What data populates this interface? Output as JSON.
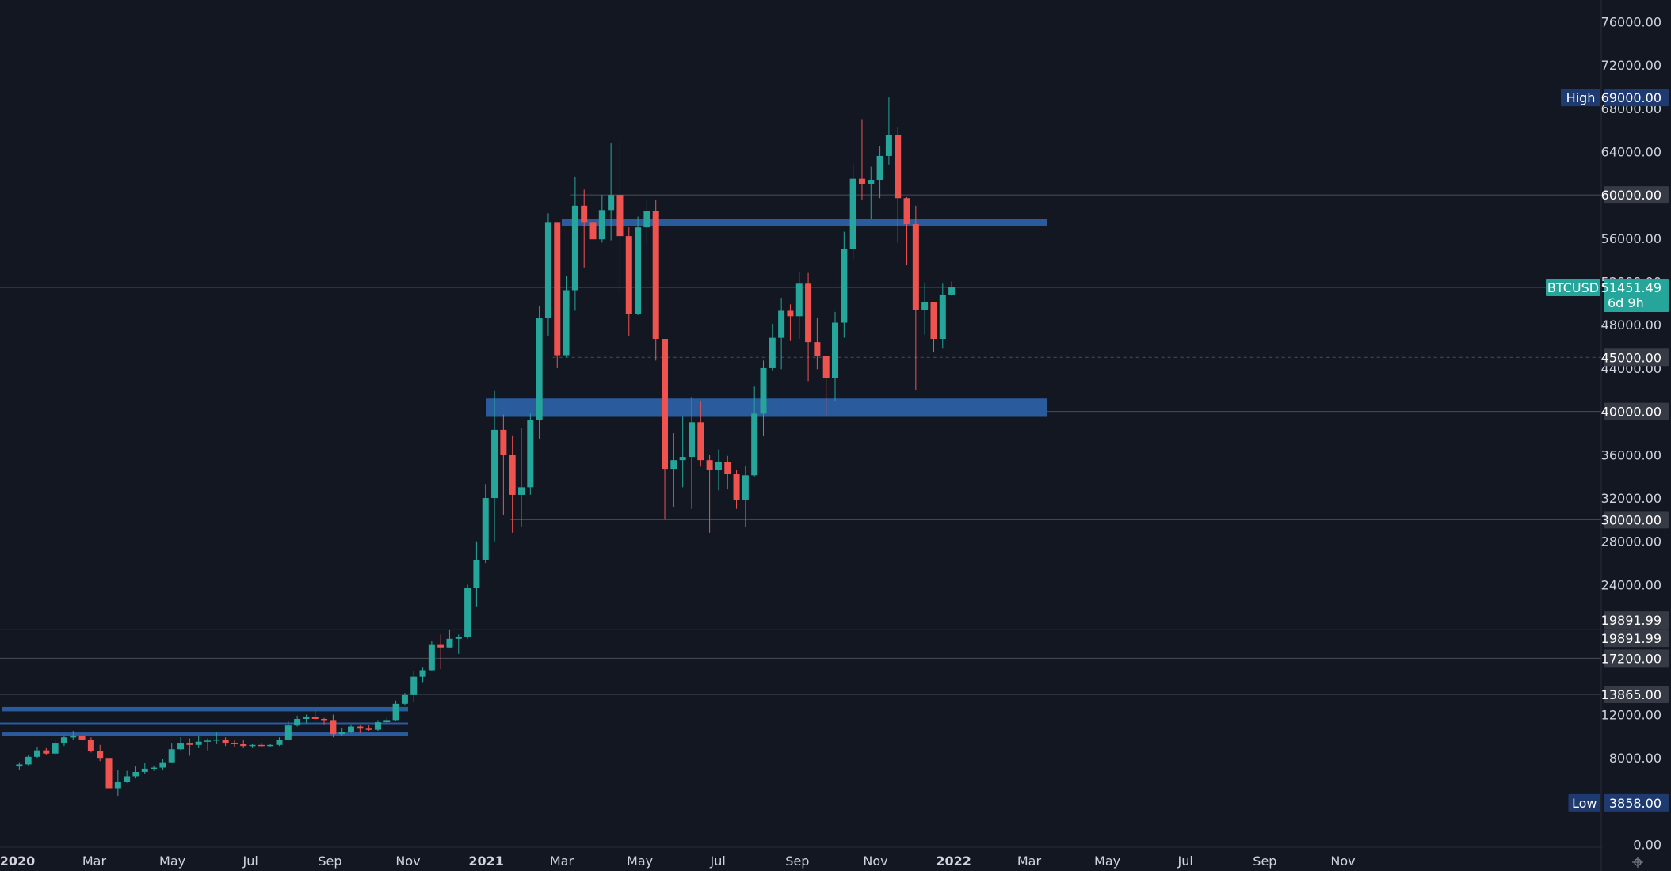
{
  "chart_data": {
    "type": "candlestick",
    "symbol": "BTCUSD",
    "interval": "1W",
    "ylim": [
      0,
      78000
    ],
    "colors": {
      "background": "#131722",
      "up": "#26a69a",
      "down": "#ef5350",
      "zone": "#2a5b9c",
      "axis_text": "#d1d4dc",
      "level_line": "#4a4e59",
      "badge_grey": "#363a45",
      "badge_navy": "#1e3a6e",
      "badge_green": "#26a69a"
    },
    "y_ticks": [
      {
        "value": 76000,
        "label": "76000.00"
      },
      {
        "value": 72000,
        "label": "72000.00"
      },
      {
        "value": 68000,
        "label": "68000.00"
      },
      {
        "value": 64000,
        "label": "64000.00"
      },
      {
        "value": 56000,
        "label": "56000.00"
      },
      {
        "value": 52000,
        "label": "52000.00"
      },
      {
        "value": 48000,
        "label": "48000.00"
      },
      {
        "value": 44000,
        "label": "44000.00"
      },
      {
        "value": 36000,
        "label": "36000.00"
      },
      {
        "value": 32000,
        "label": "32000.00"
      },
      {
        "value": 28000,
        "label": "28000.00"
      },
      {
        "value": 24000,
        "label": "24000.00"
      },
      {
        "value": 12000,
        "label": "12000.00"
      },
      {
        "value": 8000,
        "label": "8000.00"
      },
      {
        "value": 0,
        "label": "0.00"
      }
    ],
    "x_ticks": [
      {
        "date": "2020-01-01",
        "label": "2020",
        "year": true
      },
      {
        "date": "2020-03-01",
        "label": "Mar"
      },
      {
        "date": "2020-05-01",
        "label": "May"
      },
      {
        "date": "2020-07-01",
        "label": "Jul"
      },
      {
        "date": "2020-09-01",
        "label": "Sep"
      },
      {
        "date": "2020-11-01",
        "label": "Nov"
      },
      {
        "date": "2021-01-01",
        "label": "2021",
        "year": true
      },
      {
        "date": "2021-03-01",
        "label": "Mar"
      },
      {
        "date": "2021-05-01",
        "label": "May"
      },
      {
        "date": "2021-07-01",
        "label": "Jul"
      },
      {
        "date": "2021-09-01",
        "label": "Sep"
      },
      {
        "date": "2021-11-01",
        "label": "Nov"
      },
      {
        "date": "2022-01-01",
        "label": "2022",
        "year": true
      },
      {
        "date": "2022-03-01",
        "label": "Mar"
      },
      {
        "date": "2022-05-01",
        "label": "May"
      },
      {
        "date": "2022-07-01",
        "label": "Jul"
      },
      {
        "date": "2022-09-01",
        "label": "Sep"
      },
      {
        "date": "2022-11-01",
        "label": "Nov"
      }
    ],
    "candles": [
      {
        "date": "2019-12-30",
        "open": 7200,
        "high": 7600,
        "low": 6900,
        "close": 7400
      },
      {
        "date": "2020-01-06",
        "open": 7400,
        "high": 8300,
        "low": 7300,
        "close": 8100
      },
      {
        "date": "2020-01-13",
        "open": 8100,
        "high": 9000,
        "low": 8000,
        "close": 8700
      },
      {
        "date": "2020-01-20",
        "open": 8700,
        "high": 8900,
        "low": 8300,
        "close": 8400
      },
      {
        "date": "2020-01-27",
        "open": 8400,
        "high": 9600,
        "low": 8300,
        "close": 9400
      },
      {
        "date": "2020-02-03",
        "open": 9400,
        "high": 10100,
        "low": 9100,
        "close": 9900
      },
      {
        "date": "2020-02-10",
        "open": 9900,
        "high": 10500,
        "low": 9700,
        "close": 10000
      },
      {
        "date": "2020-02-17",
        "open": 10000,
        "high": 10300,
        "low": 9500,
        "close": 9700
      },
      {
        "date": "2020-02-24",
        "open": 9700,
        "high": 9900,
        "low": 8500,
        "close": 8600
      },
      {
        "date": "2020-03-02",
        "open": 8600,
        "high": 9200,
        "low": 7700,
        "close": 8000
      },
      {
        "date": "2020-03-09",
        "open": 8000,
        "high": 8200,
        "low": 3858,
        "close": 5200
      },
      {
        "date": "2020-03-16",
        "open": 5200,
        "high": 6900,
        "low": 4500,
        "close": 5800
      },
      {
        "date": "2020-03-23",
        "open": 5800,
        "high": 6800,
        "low": 5700,
        "close": 6300
      },
      {
        "date": "2020-03-30",
        "open": 6300,
        "high": 7200,
        "low": 6100,
        "close": 6700
      },
      {
        "date": "2020-04-06",
        "open": 6700,
        "high": 7500,
        "low": 6500,
        "close": 7000
      },
      {
        "date": "2020-04-13",
        "open": 7000,
        "high": 7300,
        "low": 6800,
        "close": 7100
      },
      {
        "date": "2020-04-20",
        "open": 7100,
        "high": 7900,
        "low": 6900,
        "close": 7600
      },
      {
        "date": "2020-04-27",
        "open": 7600,
        "high": 9400,
        "low": 7500,
        "close": 8800
      },
      {
        "date": "2020-05-04",
        "open": 8800,
        "high": 9900,
        "low": 8700,
        "close": 9400
      },
      {
        "date": "2020-05-11",
        "open": 9400,
        "high": 9800,
        "low": 8200,
        "close": 9200
      },
      {
        "date": "2020-05-18",
        "open": 9200,
        "high": 10000,
        "low": 8900,
        "close": 9500
      },
      {
        "date": "2020-05-25",
        "open": 9500,
        "high": 9800,
        "low": 8700,
        "close": 9600
      },
      {
        "date": "2020-06-01",
        "open": 9600,
        "high": 10400,
        "low": 9300,
        "close": 9700
      },
      {
        "date": "2020-06-08",
        "open": 9700,
        "high": 9900,
        "low": 9100,
        "close": 9400
      },
      {
        "date": "2020-06-15",
        "open": 9400,
        "high": 9600,
        "low": 9000,
        "close": 9300
      },
      {
        "date": "2020-06-22",
        "open": 9300,
        "high": 9700,
        "low": 8900,
        "close": 9100
      },
      {
        "date": "2020-06-29",
        "open": 9100,
        "high": 9300,
        "low": 8900,
        "close": 9200
      },
      {
        "date": "2020-07-06",
        "open": 9200,
        "high": 9400,
        "low": 9000,
        "close": 9100
      },
      {
        "date": "2020-07-13",
        "open": 9100,
        "high": 9300,
        "low": 9000,
        "close": 9200
      },
      {
        "date": "2020-07-20",
        "open": 9200,
        "high": 9900,
        "low": 9100,
        "close": 9700
      },
      {
        "date": "2020-07-27",
        "open": 9700,
        "high": 11400,
        "low": 9600,
        "close": 11000
      },
      {
        "date": "2020-08-03",
        "open": 11000,
        "high": 11900,
        "low": 10900,
        "close": 11600
      },
      {
        "date": "2020-08-10",
        "open": 11600,
        "high": 12000,
        "low": 11200,
        "close": 11800
      },
      {
        "date": "2020-08-17",
        "open": 11800,
        "high": 12400,
        "low": 11500,
        "close": 11600
      },
      {
        "date": "2020-08-24",
        "open": 11600,
        "high": 11700,
        "low": 11100,
        "close": 11500
      },
      {
        "date": "2020-08-31",
        "open": 11500,
        "high": 12000,
        "low": 9900,
        "close": 10200
      },
      {
        "date": "2020-09-07",
        "open": 10200,
        "high": 10800,
        "low": 10000,
        "close": 10400
      },
      {
        "date": "2020-09-14",
        "open": 10400,
        "high": 11100,
        "low": 10300,
        "close": 10900
      },
      {
        "date": "2020-09-21",
        "open": 10900,
        "high": 11000,
        "low": 10300,
        "close": 10700
      },
      {
        "date": "2020-09-28",
        "open": 10700,
        "high": 11000,
        "low": 10500,
        "close": 10600
      },
      {
        "date": "2020-10-05",
        "open": 10600,
        "high": 11500,
        "low": 10500,
        "close": 11300
      },
      {
        "date": "2020-10-12",
        "open": 11300,
        "high": 11700,
        "low": 11200,
        "close": 11500
      },
      {
        "date": "2020-10-19",
        "open": 11500,
        "high": 13300,
        "low": 11400,
        "close": 13000
      },
      {
        "date": "2020-10-26",
        "open": 13000,
        "high": 14000,
        "low": 12900,
        "close": 13800
      },
      {
        "date": "2020-11-02",
        "open": 13800,
        "high": 16000,
        "low": 13200,
        "close": 15500
      },
      {
        "date": "2020-11-09",
        "open": 15500,
        "high": 16400,
        "low": 15000,
        "close": 16100
      },
      {
        "date": "2020-11-16",
        "open": 16100,
        "high": 18800,
        "low": 16000,
        "close": 18500
      },
      {
        "date": "2020-11-23",
        "open": 18500,
        "high": 19400,
        "low": 16200,
        "close": 18200
      },
      {
        "date": "2020-11-30",
        "open": 18200,
        "high": 19800,
        "low": 18100,
        "close": 19000
      },
      {
        "date": "2020-12-07",
        "open": 19000,
        "high": 19400,
        "low": 17600,
        "close": 19200
      },
      {
        "date": "2020-12-14",
        "open": 19200,
        "high": 24000,
        "low": 19000,
        "close": 23700
      },
      {
        "date": "2020-12-21",
        "open": 23700,
        "high": 28000,
        "low": 22000,
        "close": 26300
      },
      {
        "date": "2020-12-28",
        "open": 26300,
        "high": 33300,
        "low": 26000,
        "close": 32000
      },
      {
        "date": "2021-01-04",
        "open": 32000,
        "high": 41900,
        "low": 28000,
        "close": 38300
      },
      {
        "date": "2021-01-11",
        "open": 38300,
        "high": 39700,
        "low": 30400,
        "close": 36000
      },
      {
        "date": "2021-01-18",
        "open": 36000,
        "high": 37800,
        "low": 28800,
        "close": 32300
      },
      {
        "date": "2021-01-25",
        "open": 32300,
        "high": 38500,
        "low": 29300,
        "close": 33000
      },
      {
        "date": "2021-02-01",
        "open": 33000,
        "high": 39800,
        "low": 32300,
        "close": 39200
      },
      {
        "date": "2021-02-08",
        "open": 39200,
        "high": 49700,
        "low": 37500,
        "close": 48600
      },
      {
        "date": "2021-02-15",
        "open": 48600,
        "high": 58300,
        "low": 47000,
        "close": 57500
      },
      {
        "date": "2021-02-22",
        "open": 57500,
        "high": 57500,
        "low": 44000,
        "close": 45200
      },
      {
        "date": "2021-03-01",
        "open": 45200,
        "high": 52500,
        "low": 45000,
        "close": 51200
      },
      {
        "date": "2021-03-08",
        "open": 51200,
        "high": 61700,
        "low": 49300,
        "close": 59000
      },
      {
        "date": "2021-03-15",
        "open": 59000,
        "high": 60500,
        "low": 53300,
        "close": 57500
      },
      {
        "date": "2021-03-22",
        "open": 57500,
        "high": 58300,
        "low": 50400,
        "close": 55900
      },
      {
        "date": "2021-03-29",
        "open": 55900,
        "high": 60000,
        "low": 55600,
        "close": 58600
      },
      {
        "date": "2021-04-05",
        "open": 58600,
        "high": 64800,
        "low": 55800,
        "close": 60000
      },
      {
        "date": "2021-04-12",
        "open": 60000,
        "high": 65000,
        "low": 50900,
        "close": 56200
      },
      {
        "date": "2021-04-19",
        "open": 56200,
        "high": 57000,
        "low": 47000,
        "close": 49000
      },
      {
        "date": "2021-04-26",
        "open": 49000,
        "high": 58000,
        "low": 48900,
        "close": 57000
      },
      {
        "date": "2021-05-03",
        "open": 57000,
        "high": 59500,
        "low": 55400,
        "close": 58500
      },
      {
        "date": "2021-05-10",
        "open": 58500,
        "high": 59500,
        "low": 44700,
        "close": 46700
      },
      {
        "date": "2021-05-17",
        "open": 46700,
        "high": 46700,
        "low": 30000,
        "close": 34700
      },
      {
        "date": "2021-05-24",
        "open": 34700,
        "high": 38000,
        "low": 31200,
        "close": 35500
      },
      {
        "date": "2021-05-31",
        "open": 35500,
        "high": 39500,
        "low": 33000,
        "close": 35800
      },
      {
        "date": "2021-06-07",
        "open": 35800,
        "high": 41300,
        "low": 31000,
        "close": 39000
      },
      {
        "date": "2021-06-14",
        "open": 39000,
        "high": 41000,
        "low": 34900,
        "close": 35500
      },
      {
        "date": "2021-06-21",
        "open": 35500,
        "high": 36000,
        "low": 28800,
        "close": 34600
      },
      {
        "date": "2021-06-28",
        "open": 34600,
        "high": 36500,
        "low": 32700,
        "close": 35300
      },
      {
        "date": "2021-07-05",
        "open": 35300,
        "high": 35900,
        "low": 32800,
        "close": 34200
      },
      {
        "date": "2021-07-12",
        "open": 34200,
        "high": 34600,
        "low": 31000,
        "close": 31800
      },
      {
        "date": "2021-07-19",
        "open": 31800,
        "high": 35000,
        "low": 29300,
        "close": 34100
      },
      {
        "date": "2021-07-26",
        "open": 34100,
        "high": 42300,
        "low": 34000,
        "close": 39800
      },
      {
        "date": "2021-08-02",
        "open": 39800,
        "high": 44700,
        "low": 37700,
        "close": 44000
      },
      {
        "date": "2021-08-09",
        "open": 44000,
        "high": 48100,
        "low": 43800,
        "close": 46800
      },
      {
        "date": "2021-08-16",
        "open": 46800,
        "high": 50500,
        "low": 43900,
        "close": 49300
      },
      {
        "date": "2021-08-23",
        "open": 49300,
        "high": 49900,
        "low": 46500,
        "close": 48800
      },
      {
        "date": "2021-08-30",
        "open": 48800,
        "high": 52900,
        "low": 46700,
        "close": 51800
      },
      {
        "date": "2021-09-06",
        "open": 51800,
        "high": 52800,
        "low": 42800,
        "close": 46400
      },
      {
        "date": "2021-09-13",
        "open": 46400,
        "high": 48600,
        "low": 43900,
        "close": 45100
      },
      {
        "date": "2021-09-20",
        "open": 45100,
        "high": 45100,
        "low": 39600,
        "close": 43100
      },
      {
        "date": "2021-09-27",
        "open": 43100,
        "high": 49200,
        "low": 41000,
        "close": 48200
      },
      {
        "date": "2021-10-04",
        "open": 48200,
        "high": 56600,
        "low": 46800,
        "close": 55000
      },
      {
        "date": "2021-10-11",
        "open": 55000,
        "high": 62900,
        "low": 54100,
        "close": 61500
      },
      {
        "date": "2021-10-18",
        "open": 61500,
        "high": 67000,
        "low": 59500,
        "close": 61000
      },
      {
        "date": "2021-10-25",
        "open": 61000,
        "high": 62600,
        "low": 57800,
        "close": 61400
      },
      {
        "date": "2021-11-01",
        "open": 61400,
        "high": 64500,
        "low": 59700,
        "close": 63600
      },
      {
        "date": "2021-11-08",
        "open": 63600,
        "high": 69000,
        "low": 62800,
        "close": 65500
      },
      {
        "date": "2021-11-15",
        "open": 65500,
        "high": 66300,
        "low": 55600,
        "close": 59700
      },
      {
        "date": "2021-11-22",
        "open": 59700,
        "high": 59800,
        "low": 53500,
        "close": 57300
      },
      {
        "date": "2021-11-29",
        "open": 57300,
        "high": 59000,
        "low": 42000,
        "close": 49400
      },
      {
        "date": "2021-12-06",
        "open": 49400,
        "high": 51900,
        "low": 47100,
        "close": 50100
      },
      {
        "date": "2021-12-13",
        "open": 50100,
        "high": 50100,
        "low": 45500,
        "close": 46700
      },
      {
        "date": "2021-12-20",
        "open": 46700,
        "high": 51800,
        "low": 45800,
        "close": 50800
      },
      {
        "date": "2021-12-27",
        "open": 50800,
        "high": 52000,
        "low": 50700,
        "close": 51451.49
      }
    ],
    "zones": [
      {
        "from_date": "2021-03-01",
        "to_date": "2022-03-15",
        "low": 57100,
        "high": 57800
      },
      {
        "from_date": "2021-01-01",
        "to_date": "2022-03-15",
        "low": 39500,
        "high": 41200
      },
      {
        "from_date": "2019-12-20",
        "to_date": "2020-11-01",
        "low": 12300,
        "high": 12700
      },
      {
        "from_date": "2019-12-20",
        "to_date": "2020-11-01",
        "low": 10000,
        "high": 10350
      }
    ],
    "levels": [
      {
        "value": 60000,
        "style": "solid",
        "from_date": "2021-03-08"
      },
      {
        "value": 51451.49,
        "style": "solid"
      },
      {
        "value": 45000,
        "style": "dashed",
        "from_date": "2021-02-22"
      },
      {
        "value": 40000,
        "style": "solid",
        "from_date": "2022-03-15"
      },
      {
        "value": 30000,
        "style": "solid",
        "from_date": "2021-01-20"
      },
      {
        "value": 19891.99,
        "style": "solid"
      },
      {
        "value": 17200,
        "style": "solid"
      },
      {
        "value": 13865,
        "style": "solid"
      },
      {
        "value": 11200,
        "style": "thin-blue",
        "to_date": "2020-11-01"
      }
    ],
    "axis_badges": [
      {
        "value": 69000,
        "label": "69000.00",
        "style": "navy",
        "tag": "High"
      },
      {
        "value": 60000,
        "label": "60000.00",
        "style": "grey"
      },
      {
        "value": 51451.49,
        "label": "51451.49",
        "style": "green",
        "tag": "BTCUSD",
        "sub": "6d 9h"
      },
      {
        "value": 45000,
        "label": "45000.00",
        "style": "grey"
      },
      {
        "value": 40000,
        "label": "40000.00",
        "style": "grey"
      },
      {
        "value": 30000,
        "label": "30000.00",
        "style": "grey"
      },
      {
        "value": 19891.99,
        "label": "19891.99",
        "style": "grey",
        "offset": -1
      },
      {
        "value": 19891.99,
        "label": "19891.99",
        "style": "grey",
        "offset": 1
      },
      {
        "value": 17200,
        "label": "17200.00",
        "style": "grey"
      },
      {
        "value": 13865,
        "label": "13865.00",
        "style": "grey"
      },
      {
        "value": 3858,
        "label": "3858.00",
        "style": "navy",
        "tag": "Low"
      }
    ]
  },
  "ui": {
    "corner_icon": "settings-gear-icon"
  }
}
